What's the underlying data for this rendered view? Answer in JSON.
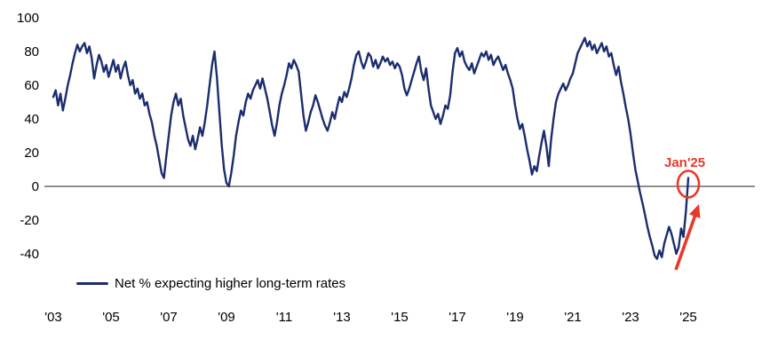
{
  "chart_data": {
    "type": "line",
    "title": "",
    "xlabel": "",
    "ylabel": "",
    "y_ticks": [
      100,
      80,
      60,
      40,
      20,
      0,
      -20,
      -40
    ],
    "ylim": [
      -55,
      105
    ],
    "x_tick_labels": [
      "'03",
      "'05",
      "'07",
      "'09",
      "'11",
      "'13",
      "'15",
      "'17",
      "'19",
      "'21",
      "'23",
      "'25"
    ],
    "x_tick_years": [
      2003,
      2005,
      2007,
      2009,
      2011,
      2013,
      2015,
      2017,
      2019,
      2021,
      2023,
      2025
    ],
    "grid": false,
    "zero_line": true,
    "line_color": "#1b2d6e",
    "zero_line_color": "#4a4a4a",
    "legend": {
      "label": "Net % expecting higher long-term rates",
      "position": "bottom-left"
    },
    "annotation": {
      "label": "Jan'25",
      "color": "#e8392b",
      "circle": true,
      "arrow": true,
      "target": "last-point"
    },
    "series": [
      {
        "name": "Net % expecting higher long-term rates",
        "frequency": "monthly",
        "start_year": 2003,
        "start_month": 1,
        "end_label": "Jan 2025",
        "values": [
          53,
          57,
          48,
          55,
          45,
          52,
          60,
          66,
          73,
          79,
          84,
          80,
          83,
          85,
          79,
          83,
          76,
          64,
          72,
          78,
          74,
          68,
          72,
          65,
          70,
          75,
          68,
          72,
          64,
          70,
          74,
          66,
          60,
          63,
          55,
          58,
          52,
          55,
          48,
          50,
          43,
          38,
          30,
          24,
          16,
          8,
          5,
          18,
          30,
          42,
          50,
          55,
          48,
          52,
          42,
          35,
          28,
          24,
          30,
          22,
          28,
          35,
          30,
          38,
          48,
          60,
          72,
          80,
          65,
          45,
          25,
          10,
          2,
          0,
          8,
          18,
          30,
          38,
          45,
          42,
          50,
          55,
          52,
          57,
          60,
          63,
          58,
          64,
          58,
          52,
          44,
          36,
          30,
          38,
          48,
          55,
          60,
          66,
          73,
          70,
          75,
          72,
          68,
          55,
          42,
          33,
          38,
          44,
          48,
          54,
          50,
          45,
          40,
          36,
          33,
          38,
          44,
          40,
          47,
          53,
          50,
          56,
          53,
          58,
          64,
          72,
          78,
          80,
          74,
          70,
          74,
          79,
          77,
          71,
          75,
          70,
          73,
          77,
          74,
          76,
          72,
          74,
          70,
          73,
          71,
          66,
          58,
          54,
          58,
          63,
          68,
          73,
          77,
          68,
          63,
          70,
          58,
          48,
          44,
          40,
          43,
          37,
          42,
          48,
          46,
          54,
          68,
          79,
          82,
          77,
          80,
          74,
          71,
          69,
          73,
          67,
          71,
          75,
          79,
          77,
          80,
          75,
          78,
          72,
          75,
          77,
          73,
          69,
          72,
          67,
          63,
          58,
          48,
          40,
          34,
          37,
          30,
          22,
          15,
          7,
          12,
          9,
          18,
          26,
          33,
          24,
          12,
          28,
          40,
          50,
          55,
          58,
          61,
          57,
          60,
          64,
          67,
          73,
          79,
          82,
          85,
          88,
          83,
          86,
          81,
          84,
          79,
          82,
          85,
          80,
          83,
          77,
          79,
          72,
          66,
          71,
          62,
          55,
          47,
          40,
          31,
          20,
          10,
          3,
          -4,
          -10,
          -17,
          -24,
          -30,
          -35,
          -41,
          -43,
          -38,
          -42,
          -34,
          -29,
          -24,
          -28,
          -34,
          -40,
          -36,
          -25,
          -30,
          -15,
          5
        ]
      }
    ]
  }
}
